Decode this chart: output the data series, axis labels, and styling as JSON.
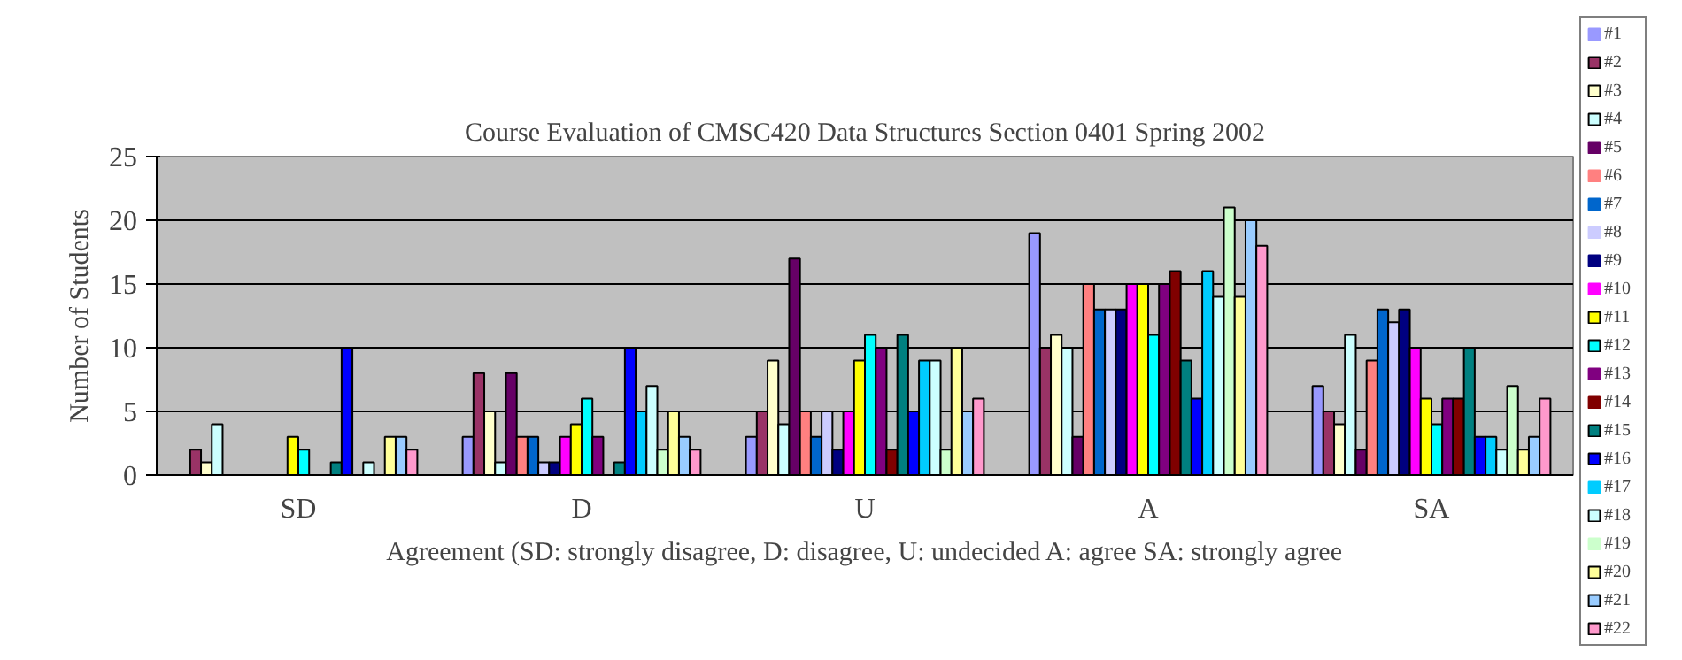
{
  "chart_data": {
    "type": "bar",
    "title": "Course Evaluation of CMSC420 Data Structures Section 0401 Spring 2002",
    "xlabel": "Agreement (SD: strongly disagree, D: disagree, U: undecided A: agree SA: strongly agree",
    "ylabel": "Number of Students",
    "categories": [
      "SD",
      "D",
      "U",
      "A",
      "SA"
    ],
    "ylim": [
      0,
      25
    ],
    "yticks": [
      0,
      5,
      10,
      15,
      20,
      25
    ],
    "grid": "y",
    "legend": "right",
    "series": [
      {
        "name": "#1",
        "color": "#9999ff",
        "values": [
          0,
          3,
          3,
          19,
          7
        ]
      },
      {
        "name": "#2",
        "color": "#993366",
        "values": [
          2,
          8,
          5,
          10,
          5
        ]
      },
      {
        "name": "#3",
        "color": "#ffffcc",
        "values": [
          1,
          5,
          9,
          11,
          4
        ]
      },
      {
        "name": "#4",
        "color": "#ccffff",
        "values": [
          4,
          1,
          4,
          10,
          11
        ]
      },
      {
        "name": "#5",
        "color": "#660066",
        "values": [
          0,
          8,
          17,
          3,
          2
        ]
      },
      {
        "name": "#6",
        "color": "#ff8080",
        "values": [
          0,
          3,
          5,
          15,
          9
        ]
      },
      {
        "name": "#7",
        "color": "#0066cc",
        "values": [
          0,
          3,
          3,
          13,
          13
        ]
      },
      {
        "name": "#8",
        "color": "#ccccff",
        "values": [
          0,
          1,
          5,
          13,
          12
        ]
      },
      {
        "name": "#9",
        "color": "#000080",
        "values": [
          0,
          1,
          2,
          13,
          13
        ]
      },
      {
        "name": "#10",
        "color": "#ff00ff",
        "values": [
          0,
          3,
          5,
          15,
          10
        ]
      },
      {
        "name": "#11",
        "color": "#ffff00",
        "values": [
          3,
          4,
          9,
          15,
          6
        ]
      },
      {
        "name": "#12",
        "color": "#00ffff",
        "values": [
          2,
          6,
          11,
          11,
          4
        ]
      },
      {
        "name": "#13",
        "color": "#800080",
        "values": [
          0,
          3,
          10,
          15,
          6
        ]
      },
      {
        "name": "#14",
        "color": "#800000",
        "values": [
          0,
          0,
          2,
          16,
          6
        ]
      },
      {
        "name": "#15",
        "color": "#008080",
        "values": [
          1,
          1,
          11,
          9,
          10
        ]
      },
      {
        "name": "#16",
        "color": "#0000ff",
        "values": [
          10,
          10,
          5,
          6,
          3
        ]
      },
      {
        "name": "#17",
        "color": "#00ccff",
        "values": [
          0,
          5,
          9,
          16,
          3
        ]
      },
      {
        "name": "#18",
        "color": "#ccffff",
        "values": [
          1,
          7,
          9,
          14,
          2
        ]
      },
      {
        "name": "#19",
        "color": "#ccffcc",
        "values": [
          0,
          2,
          2,
          21,
          7
        ]
      },
      {
        "name": "#20",
        "color": "#ffff99",
        "values": [
          3,
          5,
          10,
          14,
          2
        ]
      },
      {
        "name": "#21",
        "color": "#99ccff",
        "values": [
          3,
          3,
          5,
          20,
          3
        ]
      },
      {
        "name": "#22",
        "color": "#ff99cc",
        "values": [
          2,
          2,
          6,
          18,
          6
        ]
      }
    ]
  }
}
